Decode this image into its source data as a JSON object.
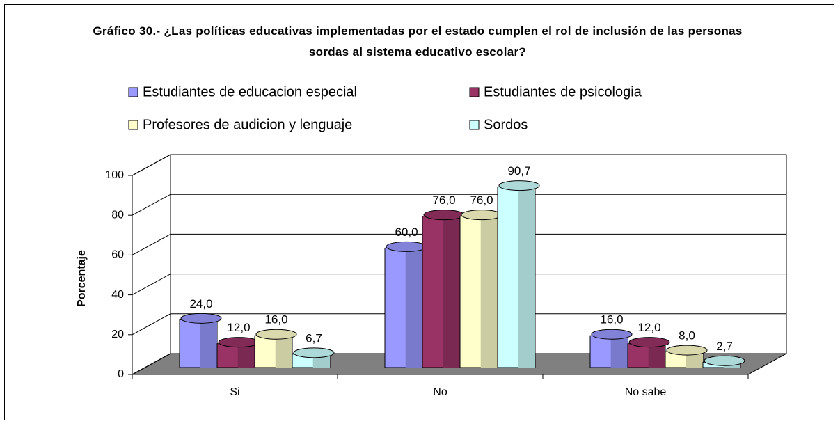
{
  "chart_data": {
    "type": "bar",
    "title": "Gráfico 30.- ¿Las políticas educativas implementadas por el estado cumplen el rol de inclusión de las personas sordas al sistema educativo escolar?",
    "ylabel": "Porcentaje",
    "categories": [
      "Si",
      "No",
      "No sabe"
    ],
    "series": [
      {
        "name": "Estudiantes de educacion especial",
        "color": "#9999ff",
        "values": [
          24.0,
          60.0,
          16.0
        ],
        "value_labels": [
          "24,0",
          "60,0",
          "16,0"
        ]
      },
      {
        "name": "Estudiantes de psicologia",
        "color": "#993366",
        "values": [
          12.0,
          76.0,
          12.0
        ],
        "value_labels": [
          "12,0",
          "76,0",
          "12,0"
        ]
      },
      {
        "name": "Profesores de audicion y lenguaje",
        "color": "#ffffcc",
        "values": [
          16.0,
          76.0,
          8.0
        ],
        "value_labels": [
          "16,0",
          "76,0",
          "8,0"
        ]
      },
      {
        "name": "Sordos",
        "color": "#ccffff",
        "values": [
          6.7,
          90.7,
          2.7
        ],
        "value_labels": [
          "6,7",
          "90,7",
          "2,7"
        ]
      }
    ],
    "ylim": [
      0,
      100
    ],
    "yticks": [
      0,
      20,
      40,
      60,
      80,
      100
    ],
    "grid": true
  }
}
